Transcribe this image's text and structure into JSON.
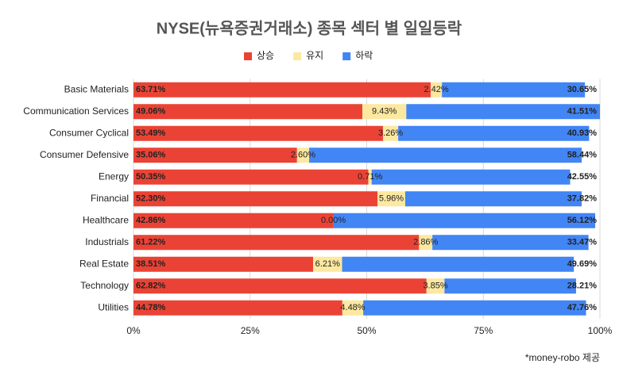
{
  "chart_data": {
    "type": "stacked-bar-horizontal",
    "title": "NYSE(뉴욕증권거래소) 종목 섹터 별 일일등락",
    "categories": [
      "Basic Materials",
      "Communication Services",
      "Consumer Cyclical",
      "Consumer Defensive",
      "Energy",
      "Financial",
      "Healthcare",
      "Industrials",
      "Real Estate",
      "Technology",
      "Utilities"
    ],
    "series": [
      {
        "name": "상승",
        "color": "#ea4335",
        "values": [
          63.71,
          49.06,
          53.49,
          35.06,
          50.35,
          52.3,
          42.86,
          61.22,
          38.51,
          62.82,
          44.78
        ],
        "value_labels": [
          "63.71%",
          "49.06%",
          "53.49%",
          "35.06%",
          "50.35%",
          "52.30%",
          "42.86%",
          "61.22%",
          "38.51%",
          "62.82%",
          "44.78%"
        ]
      },
      {
        "name": "유지",
        "color": "#fce8a0",
        "values": [
          2.42,
          9.43,
          3.26,
          2.6,
          0.71,
          5.96,
          0.0,
          2.86,
          6.21,
          3.85,
          4.48
        ],
        "value_labels": [
          "2.42%",
          "9.43%",
          "3.26%",
          "2.60%",
          "0.71%",
          "5.96%",
          "0.00%",
          "2.86%",
          "6.21%",
          "3.85%",
          "4.48%"
        ]
      },
      {
        "name": "하락",
        "color": "#4285f4",
        "values": [
          30.65,
          41.51,
          40.93,
          58.44,
          42.55,
          37.82,
          56.12,
          33.47,
          49.69,
          28.21,
          47.76
        ],
        "value_labels": [
          "30.65%",
          "41.51%",
          "40.93%",
          "58.44%",
          "42.55%",
          "37.82%",
          "56.12%",
          "33.47%",
          "49.69%",
          "28.21%",
          "47.76%"
        ]
      }
    ],
    "xlim": [
      0,
      100
    ],
    "xticks": [
      {
        "value": 0,
        "label": "0%"
      },
      {
        "value": 25,
        "label": "25%"
      },
      {
        "value": 50,
        "label": "50%"
      },
      {
        "value": 75,
        "label": "75%"
      },
      {
        "value": 100,
        "label": "100%"
      }
    ],
    "grid": true,
    "legend": "top",
    "footnote": "*money-robo 제공"
  }
}
